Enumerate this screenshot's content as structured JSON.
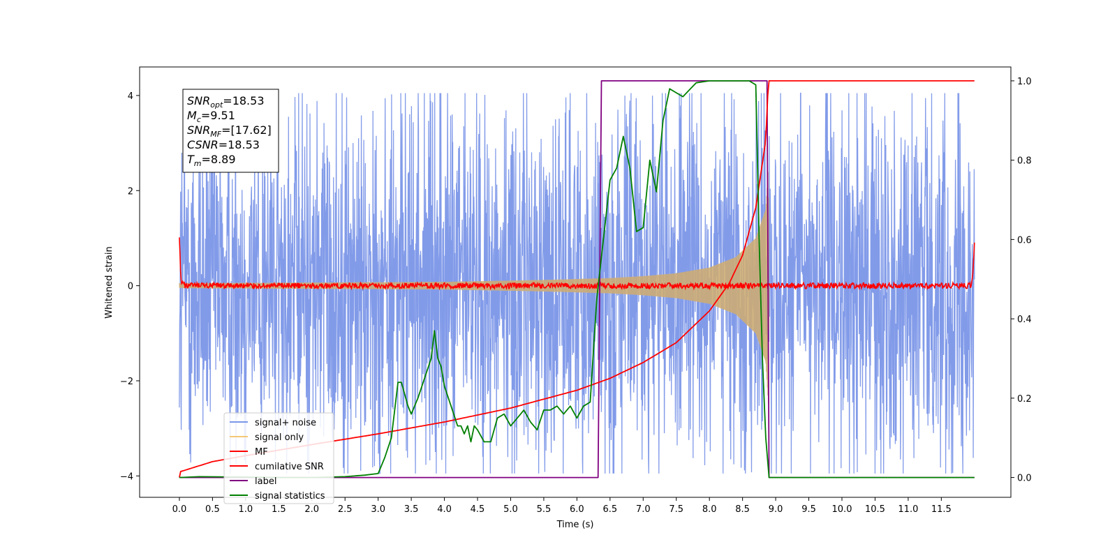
{
  "chart_data": {
    "type": "line",
    "xlabel": "Time (s)",
    "ylabel": "Whitened strain",
    "xlim": [
      -0.6,
      12.55
    ],
    "ylim": [
      -4.45,
      4.6
    ],
    "ylim_right": [
      -0.05,
      1.035
    ],
    "x_ticks": [
      0.0,
      0.5,
      1.0,
      1.5,
      2.0,
      2.5,
      3.0,
      3.5,
      4.0,
      4.5,
      5.0,
      5.5,
      6.0,
      6.5,
      7.0,
      7.5,
      8.0,
      8.5,
      9.0,
      9.5,
      10.0,
      10.5,
      11.0,
      11.5
    ],
    "x_tick_labels": [
      "0.0",
      "0.5",
      "1.0",
      "1.5",
      "2.0",
      "2.5",
      "3.0",
      "3.5",
      "4.0",
      "4.5",
      "5.0",
      "5.5",
      "6.0",
      "6.5",
      "7.0",
      "7.5",
      "8.0",
      "8.5",
      "9.0",
      "9.5",
      "10.0",
      "10.5",
      "11.0",
      "11.5"
    ],
    "y_ticks_left": [
      -4,
      -2,
      0,
      2,
      4
    ],
    "y_tick_labels_left": [
      "−4",
      "−2",
      "0",
      "2",
      "4"
    ],
    "y_ticks_right": [
      0.0,
      0.2,
      0.4,
      0.6,
      0.8,
      1.0
    ],
    "y_tick_labels_right": [
      "0.0",
      "0.2",
      "0.4",
      "0.6",
      "0.8",
      "1.0"
    ],
    "grid": false,
    "legend_position": "bottom-left",
    "annotation": {
      "lines": [
        {
          "main": "SNR",
          "sub": "opt",
          "value": "=18.53"
        },
        {
          "main": "M",
          "sub": "c",
          "value": "=9.51"
        },
        {
          "main": "SNR",
          "sub": "MF",
          "value": "=[17.62]"
        },
        {
          "main": "CSNR",
          "sub": "",
          "value": "=18.53"
        },
        {
          "main": "T",
          "sub": "m",
          "value": "=8.89"
        }
      ]
    },
    "series": [
      {
        "name": "signal+ noise",
        "color": "#7b96e8",
        "axis": "left",
        "noise_amplitude_typical": 1.0,
        "noise_amplitude_extreme": 4.0,
        "x_range": [
          0.0,
          12.0
        ]
      },
      {
        "name": "signal only",
        "color": "#f5c876",
        "axis": "left",
        "envelope": [
          [
            0.0,
            0.05
          ],
          [
            4.0,
            0.08
          ],
          [
            5.5,
            0.12
          ],
          [
            6.5,
            0.16
          ],
          [
            7.0,
            0.2
          ],
          [
            7.5,
            0.26
          ],
          [
            8.0,
            0.38
          ],
          [
            8.4,
            0.6
          ],
          [
            8.7,
            1.0
          ],
          [
            8.85,
            1.6
          ],
          [
            8.89,
            2.5
          ],
          [
            8.9,
            0.0
          ]
        ]
      },
      {
        "name": "MF",
        "color": "#ff0000",
        "axis": "left",
        "x": [
          0.0,
          0.02,
          0.04,
          0.08,
          11.96,
          11.98,
          12.0
        ],
        "y": [
          1.0,
          0.15,
          0.05,
          0.0,
          0.0,
          0.4,
          0.9
        ]
      },
      {
        "name": "cumilative SNR",
        "color": "#ff0000",
        "axis": "right",
        "x": [
          0.0,
          0.02,
          0.5,
          1.0,
          2.0,
          3.0,
          4.0,
          5.0,
          6.0,
          6.5,
          7.0,
          7.5,
          8.0,
          8.3,
          8.5,
          8.7,
          8.85,
          8.89,
          8.9,
          12.0
        ],
        "y": [
          0.0,
          0.015,
          0.04,
          0.055,
          0.083,
          0.11,
          0.14,
          0.175,
          0.22,
          0.25,
          0.29,
          0.34,
          0.42,
          0.49,
          0.56,
          0.68,
          0.85,
          1.0,
          1.0,
          1.0
        ]
      },
      {
        "name": "label",
        "color": "#800080",
        "axis": "right",
        "x": [
          0.0,
          6.32,
          6.37,
          8.87,
          8.9,
          9.0,
          12.0
        ],
        "y": [
          0.0,
          0.0,
          1.0,
          1.0,
          0.0,
          0.0,
          0.0
        ]
      },
      {
        "name": "signal statistics",
        "color": "#008000",
        "axis": "right",
        "x": [
          0.0,
          0.3,
          1.0,
          1.5,
          2.0,
          2.5,
          2.8,
          3.0,
          3.1,
          3.2,
          3.3,
          3.35,
          3.45,
          3.5,
          3.6,
          3.7,
          3.8,
          3.85,
          3.9,
          3.95,
          4.0,
          4.1,
          4.2,
          4.25,
          4.3,
          4.35,
          4.4,
          4.45,
          4.5,
          4.6,
          4.7,
          4.8,
          4.9,
          5.0,
          5.1,
          5.2,
          5.3,
          5.4,
          5.5,
          5.6,
          5.7,
          5.8,
          5.9,
          6.0,
          6.1,
          6.2,
          6.3,
          6.4,
          6.5,
          6.6,
          6.7,
          6.8,
          6.9,
          7.0,
          7.1,
          7.2,
          7.3,
          7.4,
          7.5,
          7.6,
          7.8,
          8.0,
          8.2,
          8.4,
          8.6,
          8.7,
          8.75,
          8.8,
          8.85,
          8.9,
          9.0,
          12.0
        ],
        "y": [
          0.0,
          0.002,
          0.001,
          0.0,
          0.0,
          0.002,
          0.006,
          0.01,
          0.05,
          0.1,
          0.24,
          0.24,
          0.18,
          0.16,
          0.2,
          0.25,
          0.3,
          0.37,
          0.3,
          0.28,
          0.23,
          0.18,
          0.13,
          0.13,
          0.11,
          0.13,
          0.09,
          0.13,
          0.12,
          0.09,
          0.09,
          0.15,
          0.16,
          0.13,
          0.15,
          0.17,
          0.14,
          0.12,
          0.17,
          0.17,
          0.18,
          0.16,
          0.18,
          0.15,
          0.18,
          0.19,
          0.45,
          0.6,
          0.75,
          0.78,
          0.86,
          0.78,
          0.62,
          0.63,
          0.8,
          0.72,
          0.9,
          0.98,
          0.97,
          0.96,
          0.995,
          1.0,
          1.0,
          1.0,
          1.0,
          0.99,
          0.6,
          0.3,
          0.1,
          0.0,
          0.0,
          0.0
        ]
      }
    ]
  }
}
